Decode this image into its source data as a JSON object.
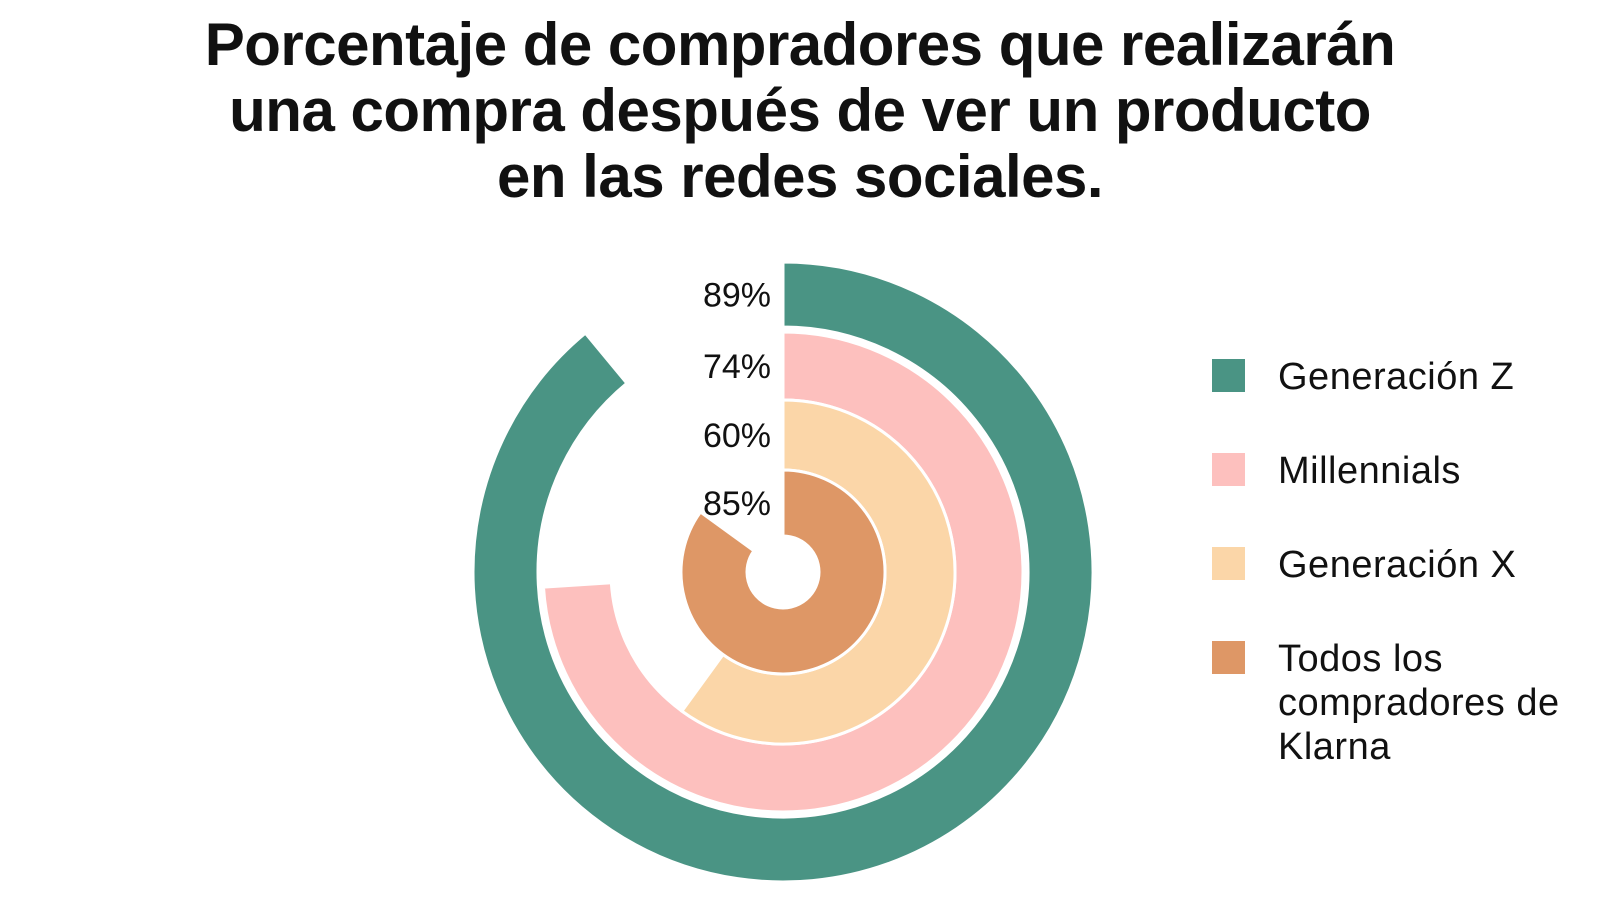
{
  "title_lines": [
    "Porcentaje de compradores que realizarán",
    "una compra después de ver un producto",
    "en las redes sociales."
  ],
  "chart_data": {
    "type": "radial-bar",
    "title": "Porcentaje de compradores que realizarán una compra después de ver un producto en las redes sociales.",
    "series": [
      {
        "name": "Generación Z",
        "value": 89,
        "label": "89%",
        "color": "#4a9484"
      },
      {
        "name": "Millennials",
        "value": 74,
        "label": "74%",
        "color": "#fdc0be"
      },
      {
        "name": "Generación X",
        "value": 60,
        "label": "60%",
        "color": "#fbd6a8"
      },
      {
        "name": "Todos los compradores de Klarna",
        "value": 85,
        "label": "85%",
        "color": "#de9766"
      }
    ],
    "max": 100,
    "legend_position": "right"
  },
  "legend": [
    {
      "label": "Generación Z",
      "color": "#4a9484"
    },
    {
      "label": "Millennials",
      "color": "#fdc0be"
    },
    {
      "label": "Generación X",
      "color": "#fbd6a8"
    },
    {
      "label": "Todos los compradores de Klarna",
      "color": "#de9766"
    }
  ]
}
